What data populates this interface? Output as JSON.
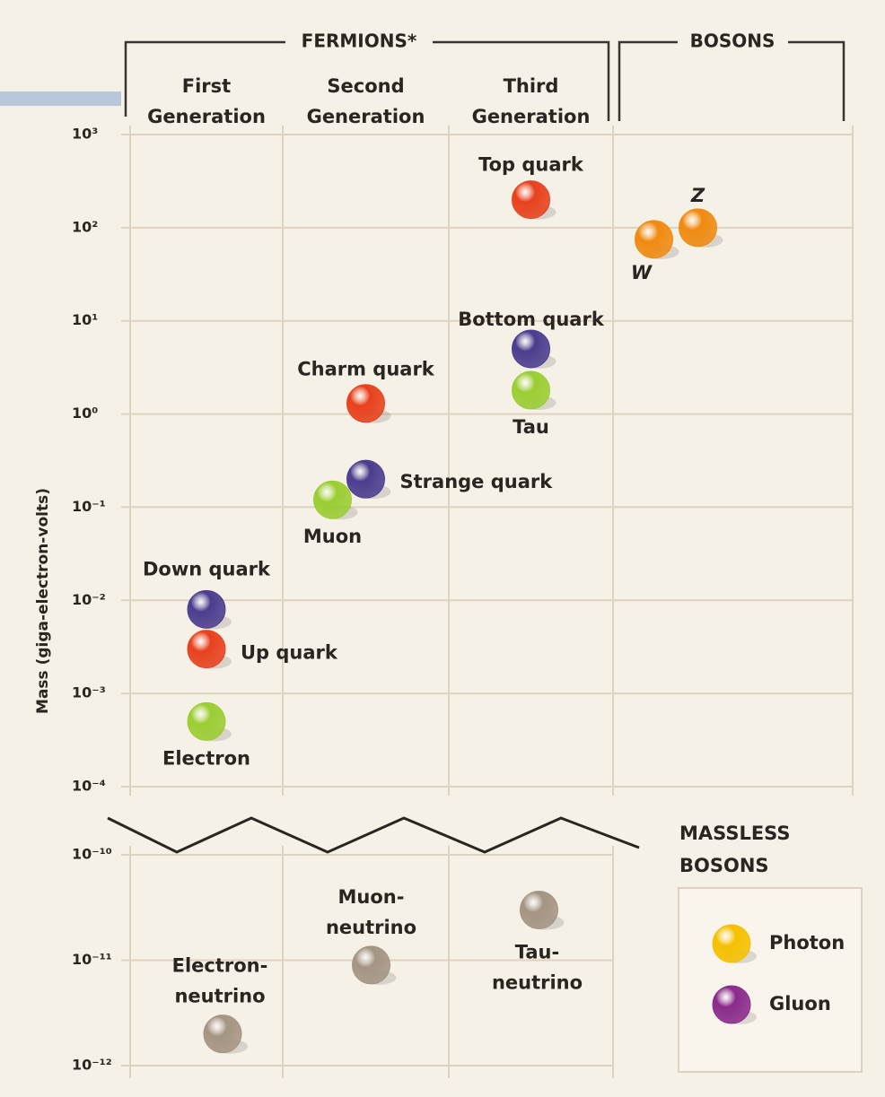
{
  "chart_data": {
    "type": "scatter",
    "log_scale": true,
    "y_label": "Mass (giga-electron-volts)",
    "fermions_title": "FERMIONS*",
    "ylim": [
      0.0001,
      1000
    ],
    "yticks": [
      {
        "value": 1000,
        "label": "10³"
      },
      {
        "value": 100,
        "label": "10²"
      },
      {
        "value": 10,
        "label": "10¹"
      },
      {
        "value": 1,
        "label": "10⁰"
      },
      {
        "value": 0.1,
        "label": "10⁻¹"
      },
      {
        "value": 0.01,
        "label": "10⁻²"
      },
      {
        "value": 0.001,
        "label": "10⁻³"
      },
      {
        "value": 0.0001,
        "label": "10⁻⁴"
      }
    ],
    "ylim_lower": [
      1e-12,
      1e-10
    ],
    "yticks_lower": [
      {
        "value": 1e-10,
        "label": "10⁻¹⁰"
      },
      {
        "value": 1e-11,
        "label": "10⁻¹¹"
      },
      {
        "value": 1e-12,
        "label": "10⁻¹²"
      }
    ],
    "columns": [
      {
        "label": [
          "First",
          "Generation"
        ],
        "particles": [
          {
            "label": [
              "Down quark"
            ],
            "value": 0.008,
            "color": "#4b3c8e"
          },
          {
            "label": [
              "Up quark"
            ],
            "value": 0.003,
            "color": "#e8401c"
          },
          {
            "label": [
              "Electron"
            ],
            "value": 0.0005,
            "color": "#9acd32"
          },
          {
            "label": [
              "Electron-",
              "neutrino"
            ],
            "value": 2e-12,
            "color": "#a49482"
          }
        ]
      },
      {
        "label": [
          "Second",
          "Generation"
        ],
        "particles": [
          {
            "label": [
              "Charm quark"
            ],
            "value": 1.3,
            "color": "#e8401c"
          },
          {
            "label": [
              "Strange quark"
            ],
            "value": 0.2,
            "color": "#4b3c8e"
          },
          {
            "label": [
              "Muon"
            ],
            "value": 0.12,
            "color": "#9acd32"
          },
          {
            "label": [
              "Muon-",
              "neutrino"
            ],
            "value": 9e-12,
            "color": "#a49482"
          }
        ]
      },
      {
        "label": [
          "Third",
          "Generation"
        ],
        "particles": [
          {
            "label": [
              "Top quark"
            ],
            "value": 200,
            "color": "#e8401c"
          },
          {
            "label": [
              "Bottom quark"
            ],
            "value": 5,
            "color": "#4b3c8e"
          },
          {
            "label": [
              "Tau"
            ],
            "value": 1.8,
            "color": "#9acd32"
          },
          {
            "label": [
              "Tau-",
              "neutrino"
            ],
            "value": 3e-11,
            "color": "#a49482"
          }
        ]
      }
    ],
    "bosons": {
      "title": "BOSONS",
      "particles": [
        {
          "label": [
            "W"
          ],
          "value": 75,
          "color": "#f08a10"
        },
        {
          "label": [
            "Z"
          ],
          "value": 100,
          "color": "#f08a10"
        }
      ]
    },
    "massless": {
      "title": [
        "MASSLESS",
        "BOSONS"
      ],
      "items": [
        {
          "name": "Photon",
          "color": "#f5c000"
        },
        {
          "name": "Gluon",
          "color": "#8a2a8a"
        }
      ]
    }
  }
}
